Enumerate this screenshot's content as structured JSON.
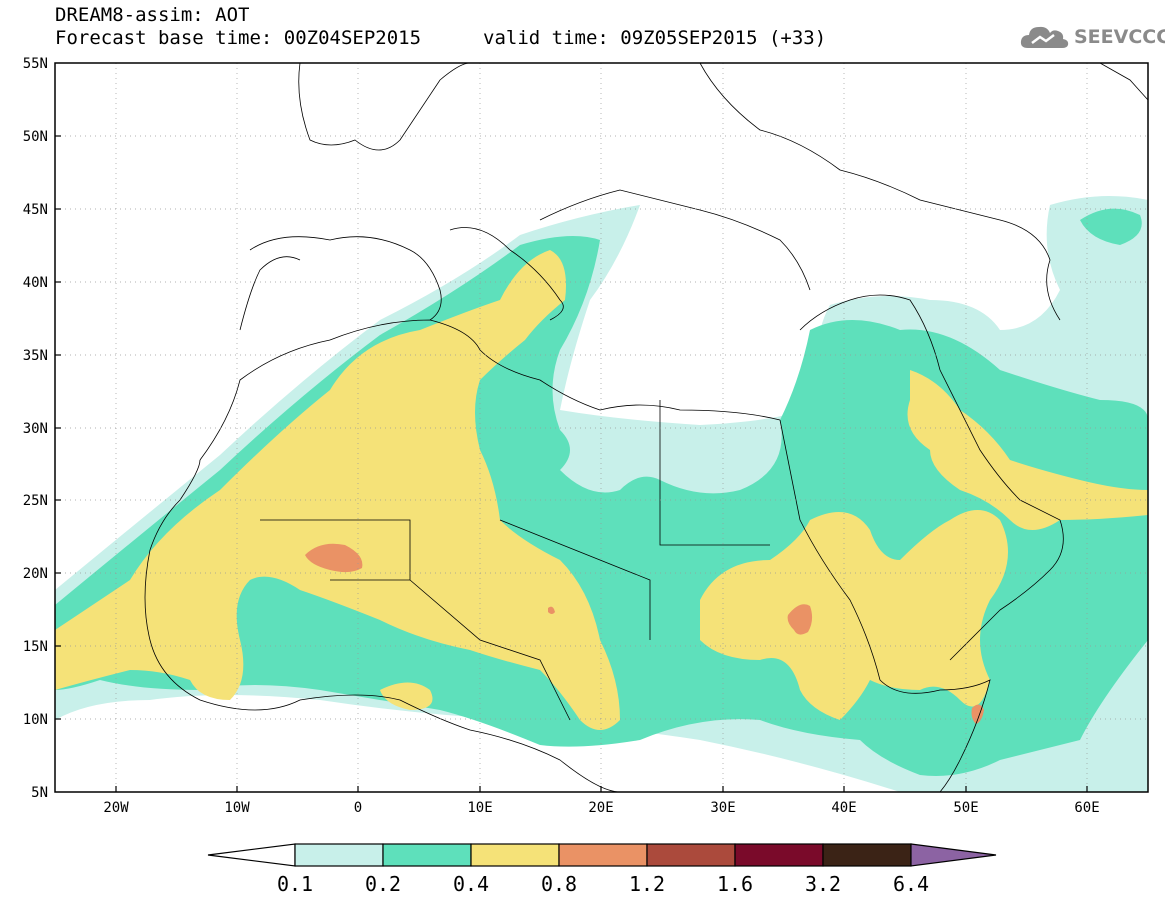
{
  "header": {
    "title": "DREAM8-assim: AOT",
    "base_time": "Forecast base time: 00Z04SEP2015",
    "valid_time": "valid time: 09Z05SEP2015 (+33)"
  },
  "logo": {
    "text": "SEEVCCC",
    "icon": "cloud-icon",
    "color": "#8a8a8a"
  },
  "map": {
    "lon_range": [
      -25,
      65
    ],
    "lat_range": [
      5,
      55
    ],
    "lat_labels": [
      "55N",
      "50N",
      "45N",
      "40N",
      "35N",
      "30N",
      "25N",
      "20N",
      "15N",
      "10N",
      "5N"
    ],
    "lat_values": [
      55,
      50,
      45,
      40,
      35,
      30,
      25,
      20,
      15,
      10,
      5
    ],
    "lon_labels": [
      "20W",
      "10W",
      "0",
      "10E",
      "20E",
      "30E",
      "40E",
      "50E",
      "60E"
    ],
    "lon_values": [
      -20,
      -10,
      0,
      10,
      20,
      30,
      40,
      50,
      60
    ]
  },
  "colorbar": {
    "levels": [
      "0.1",
      "0.2",
      "0.4",
      "0.8",
      "1.2",
      "1.6",
      "3.2",
      "6.4"
    ],
    "colors": [
      "#c8f0ea",
      "#5ee0bb",
      "#f5e278",
      "#ea9265",
      "#ab4a3c",
      "#7a0a2a",
      "#3b2316",
      "#8c63a3"
    ],
    "under_color": "#ffffff"
  }
}
